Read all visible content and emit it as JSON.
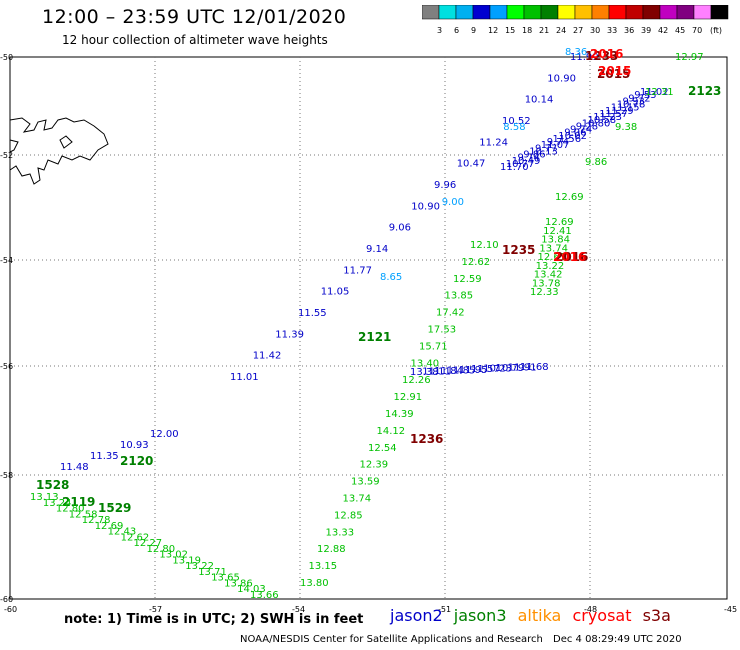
{
  "title": "12:00 – 23:59 UTC 12/01/2020",
  "subtitle": "12 hour collection of altimeter wave heights",
  "scale": {
    "labels": [
      "3",
      "6",
      "9",
      "12",
      "15",
      "18",
      "21",
      "24",
      "27",
      "30",
      "33",
      "36",
      "39",
      "42",
      "45",
      "70"
    ],
    "unit": "(ft)",
    "colors": [
      "#808080",
      "#00e0e0",
      "#00b0f0",
      "#0000d0",
      "#00a0ff",
      "#00ff00",
      "#00c000",
      "#008000",
      "#ffff00",
      "#ffc000",
      "#ff8000",
      "#ff0000",
      "#c00000",
      "#800000",
      "#c000c0",
      "#800080",
      "#ff80ff",
      "#000000"
    ]
  },
  "axes": {
    "x_labels": [
      "-60",
      "-57",
      "-54",
      "-51",
      "-48",
      "-45"
    ],
    "y_labels": [
      "-50",
      "-52",
      "-54",
      "-56",
      "-58",
      "-60"
    ]
  },
  "tracks": [
    {
      "color": "#0000c8",
      "labels": [
        "11.48",
        "11.35",
        "10.93",
        "12.00"
      ]
    },
    {
      "color": "#008000",
      "labels": [
        "2120",
        "2121",
        "2123",
        "2119",
        "1529",
        "1528"
      ]
    },
    {
      "color": "#00c000",
      "labels": [
        "13.13",
        "13.24",
        "12.80",
        "12.58",
        "12.78",
        "12.69",
        "12.43",
        "12.62",
        "12.27",
        "12.80",
        "13.02",
        "13.19",
        "13.22",
        "13.71",
        "13.65",
        "13.86",
        "14.03",
        "13.66"
      ]
    },
    {
      "color": "#0000c8",
      "labels": [
        "11.01",
        "11.42",
        "11.39",
        "11.55",
        "11.05",
        "11.77",
        "9.14",
        "9.06",
        "10.90",
        "9.96",
        "10.47",
        "11.24",
        "10.52",
        "10.14",
        "10.90",
        "11.99"
      ]
    },
    {
      "color": "#00c000",
      "labels": [
        "12.10",
        "12.62",
        "12.59",
        "13.85",
        "17.42",
        "17.53",
        "15.71",
        "13.40",
        "12.26",
        "12.91",
        "14.39",
        "14.12",
        "12.54",
        "12.39",
        "13.59",
        "13.74",
        "12.85",
        "13.33",
        "12.88",
        "13.15",
        "13.80"
      ]
    },
    {
      "color": "#0000c8",
      "labels": [
        "13.38",
        "11.11",
        "11.84",
        "11.85",
        "11.95",
        "11.57",
        "10.23",
        "10.79",
        "11.91",
        "11.68"
      ]
    },
    {
      "color": "#00c000",
      "labels": [
        "12.33",
        "13.78",
        "13.42",
        "13.22",
        "12.67",
        "13.74",
        "13.84",
        "12.41",
        "12.69"
      ]
    },
    {
      "color": "#0000c8",
      "labels": [
        "11.70",
        "10.77",
        "10.49",
        "9.74",
        "9.86",
        "10.13",
        "9.77",
        "11.07",
        "9.74",
        "11.56",
        "10.02",
        "9.06",
        "9.74",
        "9.28",
        "10.80",
        "10.58",
        "11.23",
        "11.57",
        "11.29",
        "11.15",
        "10.78",
        "9.93",
        "9.72",
        "9.53",
        "11.02"
      ]
    },
    {
      "color": "#00a0ff",
      "labels": [
        "8.65",
        "9.00",
        "8.58",
        "8.36"
      ]
    },
    {
      "color": "#800000",
      "labels": [
        "1235",
        "1236",
        "2016",
        "2015",
        "1233"
      ]
    },
    {
      "color": "#ff0000",
      "labels": [
        "2016",
        "2015",
        "2016"
      ]
    },
    {
      "color": "#00c000",
      "labels": [
        "12.97",
        "12.31",
        "9.38",
        "9.86",
        "12.69"
      ]
    }
  ],
  "note": "note: 1) Time is in UTC; 2) SWH is in feet",
  "legend": [
    {
      "label": "jason2",
      "color": "#0000c8"
    },
    {
      "label": "jason3",
      "color": "#008000"
    },
    {
      "label": "altika",
      "color": "#ff9000"
    },
    {
      "label": "cryosat",
      "color": "#ff0000"
    },
    {
      "label": "s3a",
      "color": "#800000"
    }
  ],
  "credit": "NOAA/NESDIS Center for Satellite Applications and Research",
  "stamp": "Dec  4 08:29:49 UTC 2020"
}
